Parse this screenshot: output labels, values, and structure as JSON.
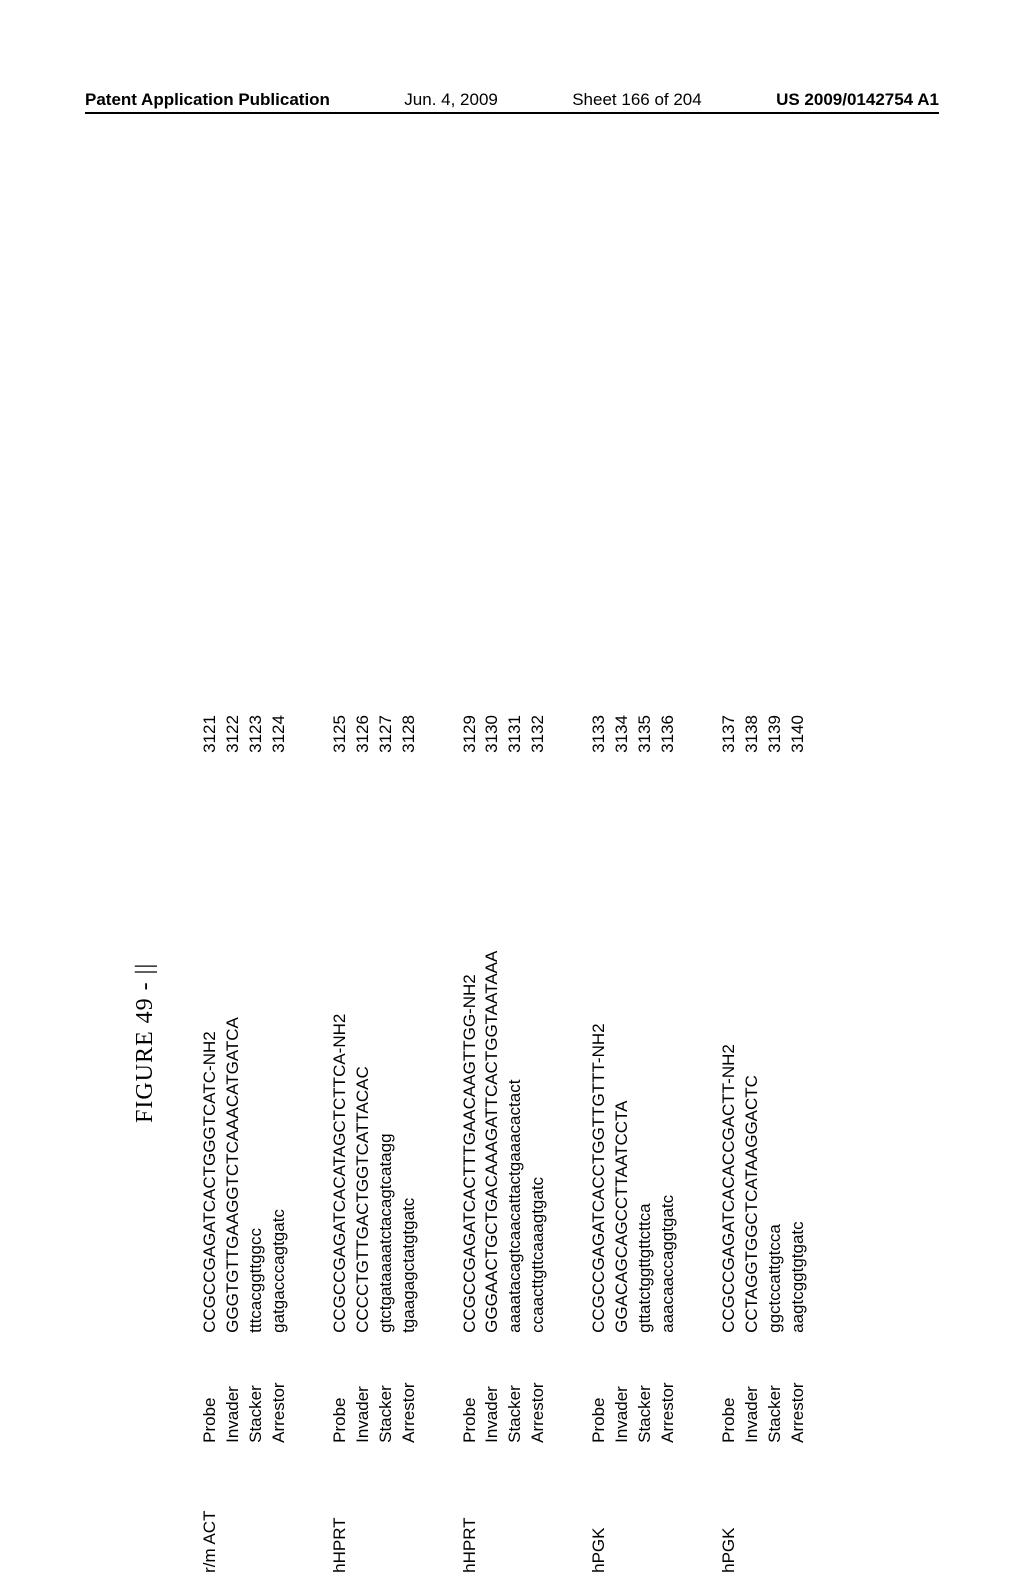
{
  "header": {
    "left": "Patent Application Publication",
    "date": "Jun. 4, 2009",
    "sheet": "Sheet 166 of 204",
    "pubno": "US 2009/0142754 A1"
  },
  "figure_title": "FIGURE 49 - ||",
  "rowLabels": [
    "Probe",
    "Invader",
    "Stacker",
    "Arrestor"
  ],
  "genes": [
    {
      "name": "r/m ACT",
      "sequences": [
        "CCGCCGAGATCACTGGGTCATC-NH2",
        "GGGTGTTGAAGGTCTCAAACATGATCA",
        "tttcacggttggcc",
        "gatgacccagtgatc"
      ],
      "ids": [
        "3121",
        "3122",
        "3123",
        "3124"
      ]
    },
    {
      "name": "hHPRT",
      "sequences": [
        "CCGCCGAGATCACATAGCTCTTCA-NH2",
        "CCCCTGTTGACTGGTCATTACAC",
        "gtctgataaaatctacagtcatagg",
        "tgaagagctatgtgatc"
      ],
      "ids": [
        "3125",
        "3126",
        "3127",
        "3128"
      ]
    },
    {
      "name": "hHPRT",
      "sequences": [
        "CCGCCGAGATCACTTTGAACAAGTTGG-NH2",
        "GGGAACTGCTGACAAAGATTCACTGGTAATAAA",
        "aaaatacagtcaacattactgaaacactact",
        "ccaacttgttcaaagtgatc"
      ],
      "ids": [
        "3129",
        "3130",
        "3131",
        "3132"
      ]
    },
    {
      "name": "hPGK",
      "sequences": [
        "CCGCCGAGATCACCTGGTTGTTT-NH2",
        "GGACAGCAGCCTTAATCCTA",
        "gttatctggttgttcttca",
        "aaacaaccaggtgatc"
      ],
      "ids": [
        "3133",
        "3134",
        "3135",
        "3136"
      ]
    },
    {
      "name": "hPGK",
      "sequences": [
        "CCGCCGAGATCACACCGACTT-NH2",
        "CCTAGGTGGCTCATAAGGACTC",
        "ggctccattgtcca",
        "aagtcggtgtgatc"
      ],
      "ids": [
        "3137",
        "3138",
        "3139",
        "3140"
      ]
    }
  ]
}
